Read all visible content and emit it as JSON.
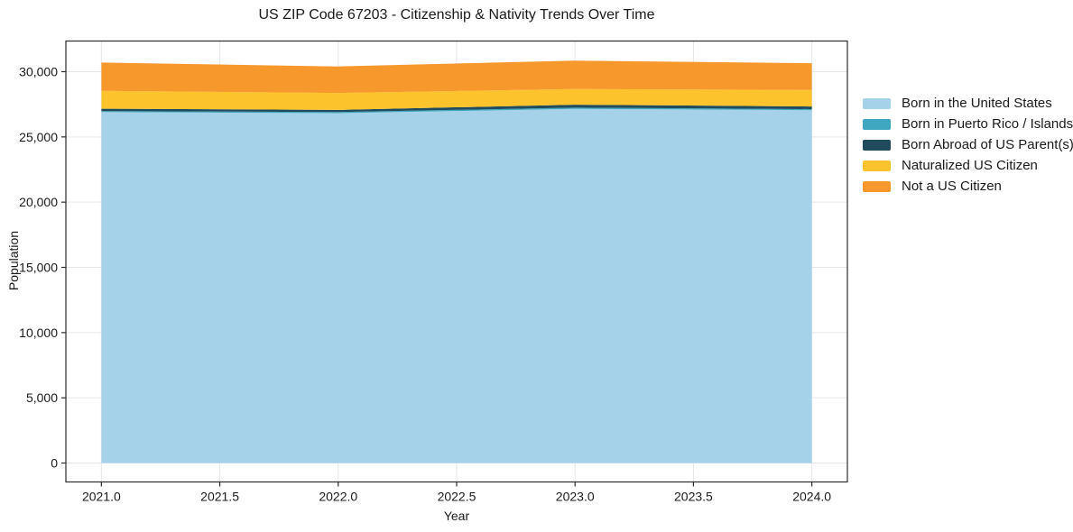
{
  "chart_data": {
    "type": "area",
    "stacked": true,
    "title": "US ZIP Code 67203 - Citizenship & Nativity Trends Over Time",
    "xlabel": "Year",
    "ylabel": "Population",
    "x": [
      2021,
      2022,
      2023,
      2024
    ],
    "series": [
      {
        "name": "Born in the United States",
        "color": "#A5D2E8",
        "values": [
          26900,
          26820,
          27150,
          27050
        ]
      },
      {
        "name": "Born in Puerto Rico / Islands",
        "color": "#3FA8C0",
        "values": [
          80,
          80,
          90,
          80
        ]
      },
      {
        "name": "Born Abroad of US Parent(s)",
        "color": "#1F4B5C",
        "values": [
          180,
          170,
          230,
          200
        ]
      },
      {
        "name": "Naturalized US Citizen",
        "color": "#FCC32D",
        "values": [
          1370,
          1300,
          1200,
          1270
        ]
      },
      {
        "name": "Not a US Citizen",
        "color": "#F6982B",
        "values": [
          2170,
          2030,
          2180,
          2050
        ]
      }
    ],
    "totals": [
      30700,
      30400,
      30850,
      30650
    ],
    "xlim": [
      2020.85,
      2024.15
    ],
    "ylim": [
      -1450,
      32350
    ],
    "xticks": {
      "values": [
        2021,
        2021.5,
        2022,
        2022.5,
        2023,
        2023.5,
        2024
      ],
      "labels": [
        "2021.0",
        "2021.5",
        "2022.0",
        "2022.5",
        "2023.0",
        "2023.5",
        "2024.0"
      ]
    },
    "yticks": {
      "values": [
        0,
        5000,
        10000,
        15000,
        20000,
        25000,
        30000
      ],
      "labels": [
        "0",
        "5,000",
        "10,000",
        "15,000",
        "20,000",
        "25,000",
        "30,000"
      ]
    },
    "grid": true,
    "legend_position": "right",
    "grid_color": "#e7e7e7",
    "spine_color": "#2b2b2b",
    "text_color": "#1a1a1a"
  }
}
